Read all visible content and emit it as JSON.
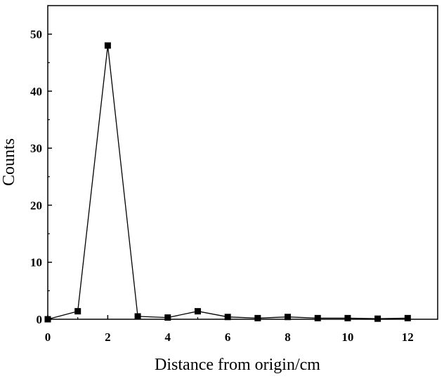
{
  "chart_data": {
    "type": "line",
    "title": "",
    "xlabel": "Distance from origin/cm",
    "ylabel": "Counts",
    "xlim": [
      0,
      13
    ],
    "ylim": [
      0,
      55
    ],
    "xticks": [
      0,
      2,
      4,
      6,
      8,
      10,
      12
    ],
    "yticks": [
      0,
      10,
      20,
      30,
      40,
      50
    ],
    "xtick_labels": [
      "0",
      "2",
      "4",
      "6",
      "8",
      "10",
      "12"
    ],
    "ytick_labels": [
      "0",
      "10",
      "20",
      "30",
      "40",
      "50"
    ],
    "grid": false,
    "marker": "square",
    "colors": {
      "line": "#000000",
      "marker": "#000000"
    },
    "x": [
      0,
      1,
      2,
      3,
      4,
      5,
      6,
      7,
      8,
      9,
      10,
      11,
      12
    ],
    "series": [
      {
        "values": [
          0,
          1.4,
          48,
          0.5,
          0.3,
          1.4,
          0.4,
          0.2,
          0.4,
          0.2,
          0.2,
          0.1,
          0.2
        ]
      }
    ]
  }
}
